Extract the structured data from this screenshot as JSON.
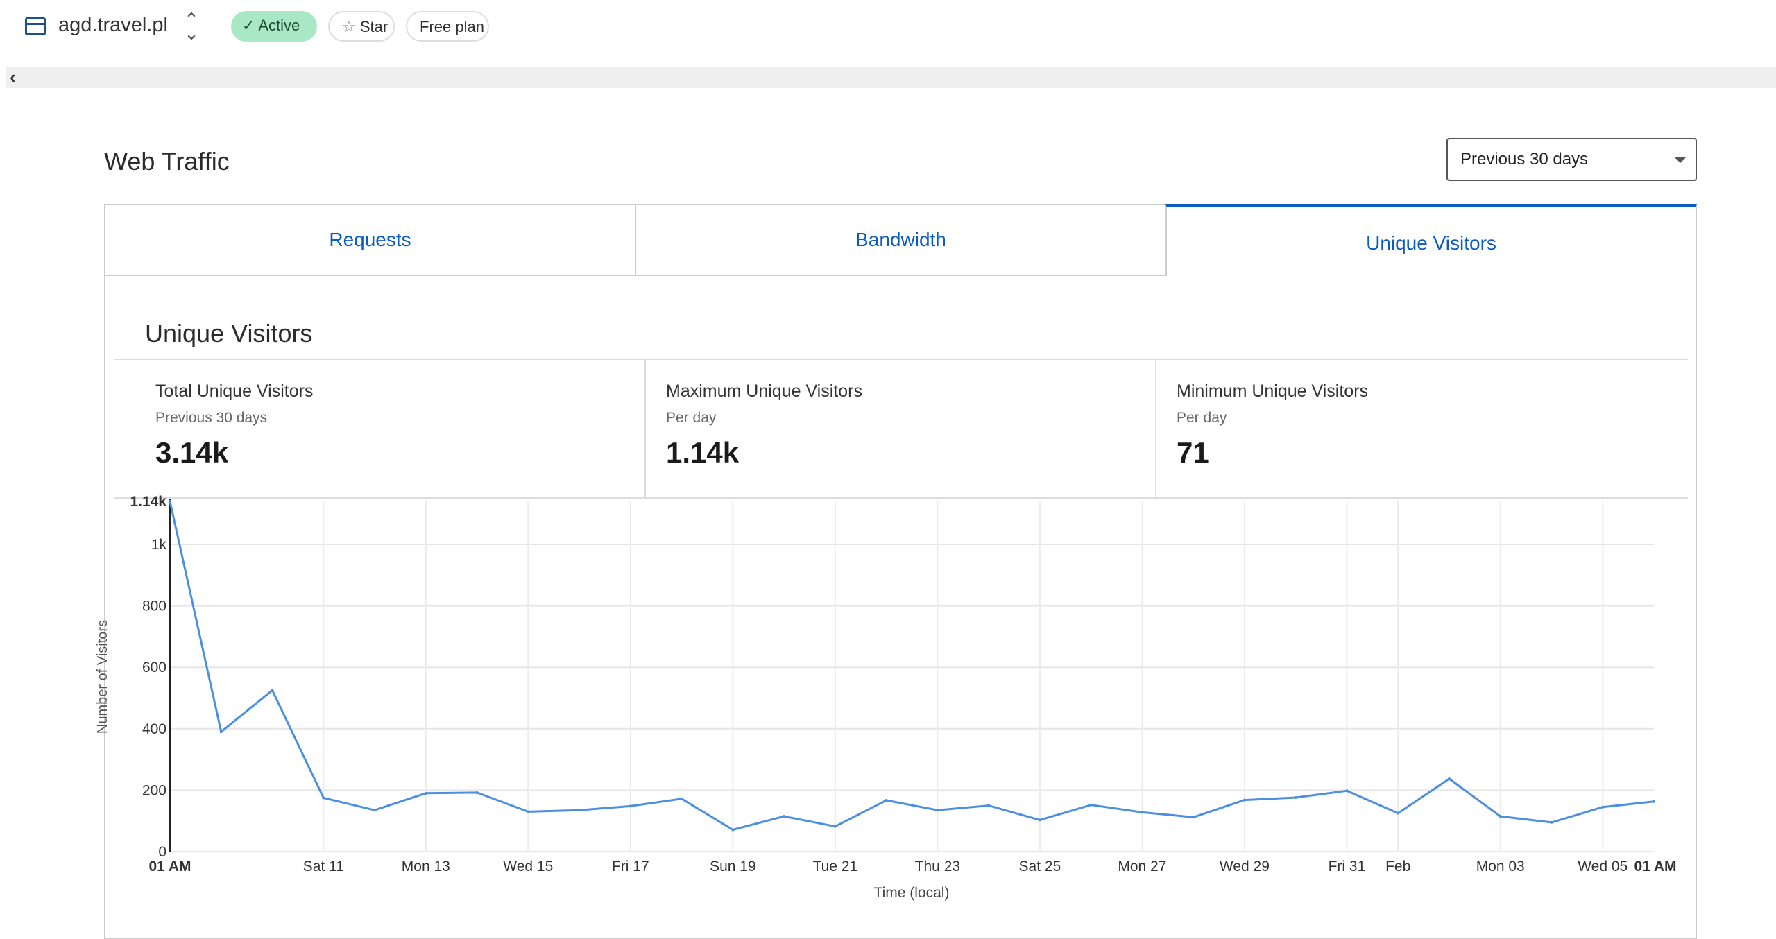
{
  "header": {
    "site_name": "agd.travel.pl",
    "status": "Active",
    "star_label": "Star",
    "plan": "Free plan",
    "icons": [
      "browser-window-icon",
      "chevron-up-down-icon",
      "check-icon",
      "star-icon",
      "chevron-left-icon"
    ]
  },
  "page": {
    "title": "Web Traffic",
    "range_select": "Previous 30 days"
  },
  "tabs": [
    {
      "label": "Requests",
      "active": false
    },
    {
      "label": "Bandwidth",
      "active": false
    },
    {
      "label": "Unique Visitors",
      "active": true
    }
  ],
  "section": {
    "title": "Unique Visitors",
    "stats": [
      {
        "label": "Total Unique Visitors",
        "sub": "Previous 30 days",
        "value": "3.14k"
      },
      {
        "label": "Maximum Unique Visitors",
        "sub": "Per day",
        "value": "1.14k"
      },
      {
        "label": "Minimum Unique Visitors",
        "sub": "Per day",
        "value": "71"
      }
    ]
  },
  "colors": {
    "accent": "#0a5bc4",
    "line": "#4a8fe0",
    "active_pill": "#a8e8c4"
  },
  "chart_data": {
    "type": "line",
    "xlabel": "Time (local)",
    "ylabel": "Number of Visitors",
    "ylim": [
      0,
      1140
    ],
    "grid": true,
    "y_ticks": [
      {
        "value": 0,
        "label": "0"
      },
      {
        "value": 200,
        "label": "200"
      },
      {
        "value": 400,
        "label": "400"
      },
      {
        "value": 600,
        "label": "600"
      },
      {
        "value": 800,
        "label": "800"
      },
      {
        "value": 1000,
        "label": "1k"
      },
      {
        "value": 1140,
        "label": "1.14k",
        "bold": true
      }
    ],
    "x_ticks": [
      {
        "day": 0,
        "label": "01 AM",
        "bold": true
      },
      {
        "day": 3,
        "label": "Sat 11"
      },
      {
        "day": 5,
        "label": "Mon 13"
      },
      {
        "day": 7,
        "label": "Wed 15"
      },
      {
        "day": 9,
        "label": "Fri 17"
      },
      {
        "day": 11,
        "label": "Sun 19"
      },
      {
        "day": 13,
        "label": "Tue 21"
      },
      {
        "day": 15,
        "label": "Thu 23"
      },
      {
        "day": 17,
        "label": "Sat 25"
      },
      {
        "day": 19,
        "label": "Mon 27"
      },
      {
        "day": 21,
        "label": "Wed 29"
      },
      {
        "day": 23,
        "label": "Fri 31"
      },
      {
        "day": 24,
        "label": "Feb"
      },
      {
        "day": 26,
        "label": "Mon 03"
      },
      {
        "day": 28,
        "label": "Wed 05"
      },
      {
        "day": 29,
        "label": "01 AM",
        "bold": true
      }
    ],
    "series": [
      {
        "dates": [
          "Jan 08",
          "Jan 09",
          "Jan 10",
          "Jan 11",
          "Jan 12",
          "Jan 13",
          "Jan 14",
          "Jan 15",
          "Jan 16",
          "Jan 17",
          "Jan 18",
          "Jan 19",
          "Jan 20",
          "Jan 21",
          "Jan 22",
          "Jan 23",
          "Jan 24",
          "Jan 25",
          "Jan 26",
          "Jan 27",
          "Jan 28",
          "Jan 29",
          "Jan 30",
          "Jan 31",
          "Feb 01",
          "Feb 02",
          "Feb 03",
          "Feb 04",
          "Feb 05",
          "Feb 06"
        ],
        "values": [
          1140,
          390,
          525,
          175,
          135,
          190,
          192,
          130,
          135,
          148,
          172,
          71,
          115,
          82,
          167,
          135,
          150,
          103,
          152,
          128,
          112,
          168,
          176,
          198,
          125,
          237,
          115,
          95,
          145,
          163
        ]
      }
    ]
  }
}
